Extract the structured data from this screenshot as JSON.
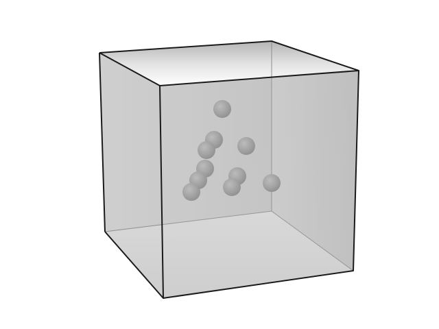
{
  "scene": {
    "background_color": "#ffffff",
    "box_edge_color": "#1a1a1a",
    "box_hidden_edge_color": "#9a9a9a",
    "sphere_color": "#9a9a9a",
    "sphere_count": 10
  }
}
